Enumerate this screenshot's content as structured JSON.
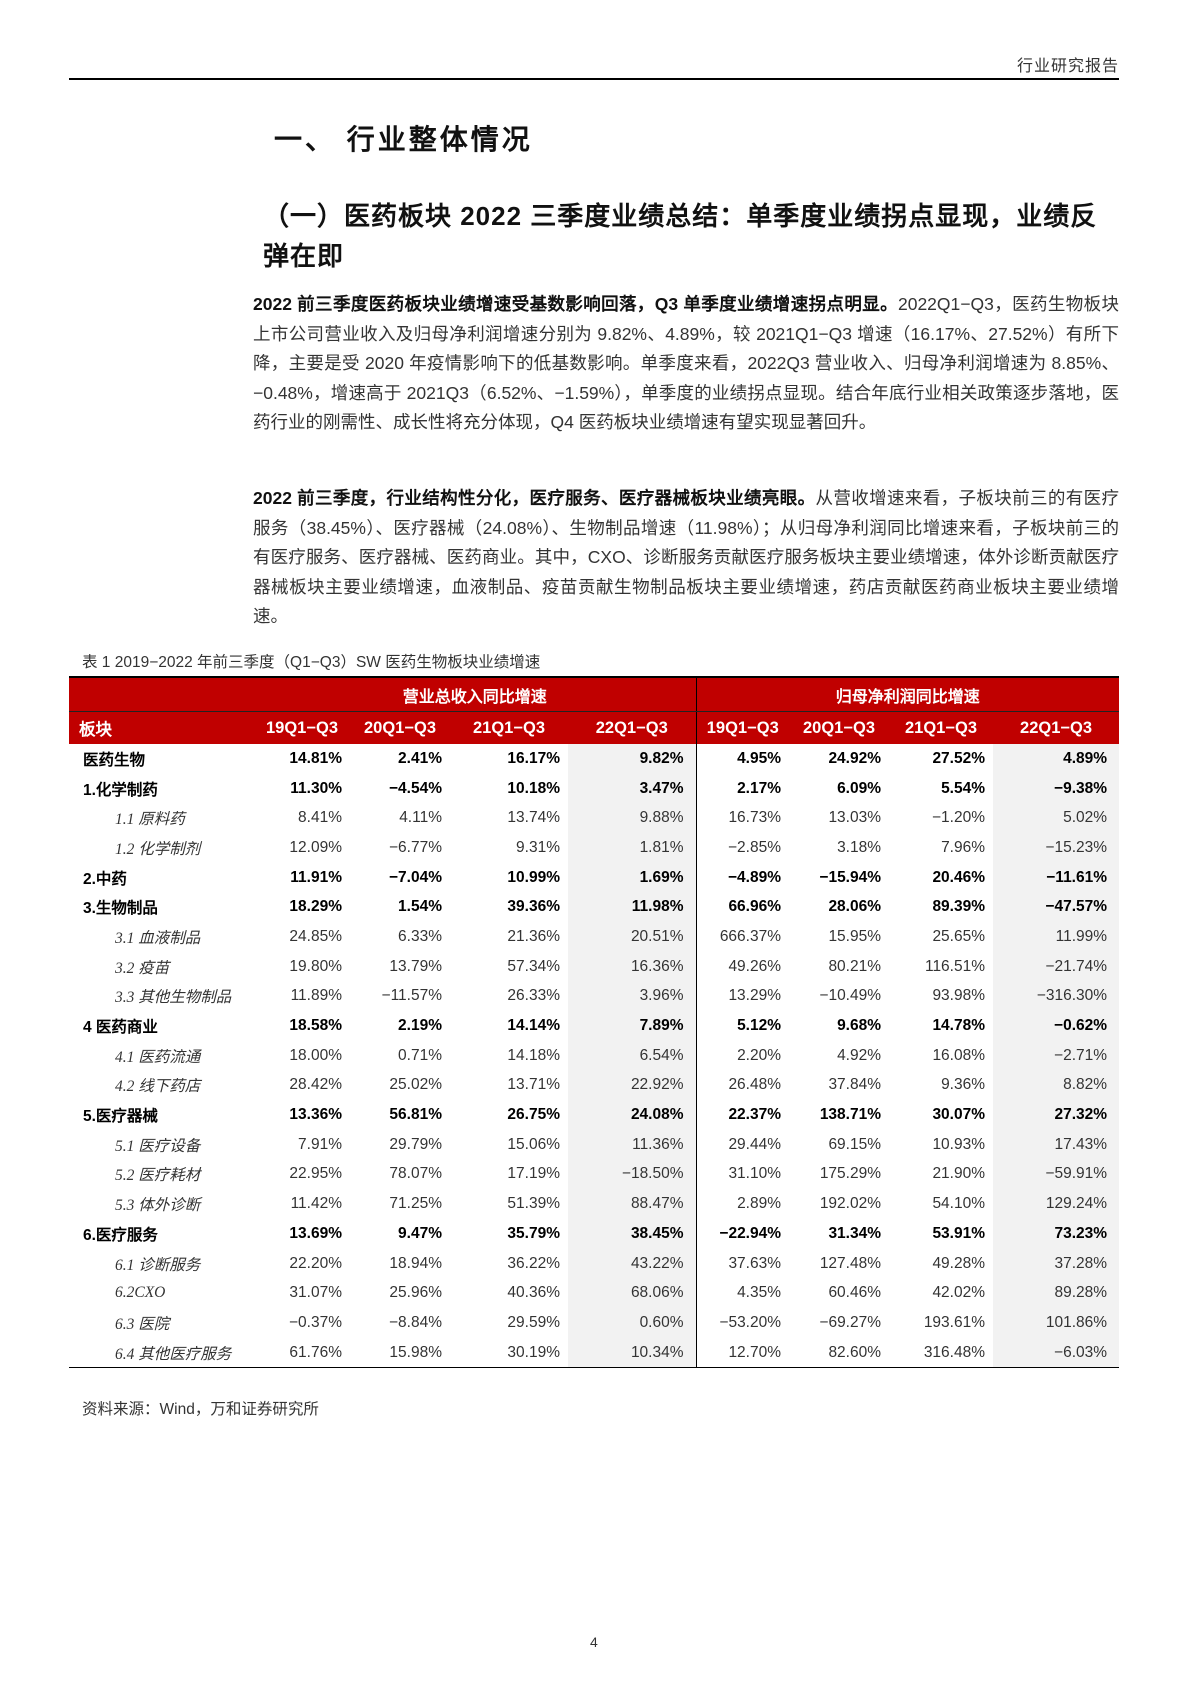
{
  "header": {
    "report_type": "行业研究报告"
  },
  "section": {
    "title": "一、 行业整体情况",
    "subtitle": "（一）医药板块 2022 三季度业绩总结：单季度业绩拐点显现，业绩反弹在即"
  },
  "paragraphs": [
    {
      "lead": "2022 前三季度医药板块业绩增速受基数影响回落，Q3 单季度业绩增速拐点明显。",
      "body": "2022Q1−Q3，医药生物板块上市公司营业收入及归母净利润增速分别为 9.82%、4.89%，较 2021Q1−Q3 增速（16.17%、27.52%）有所下降，主要是受 2020 年疫情影响下的低基数影响。单季度来看，2022Q3 营业收入、归母净利润增速为 8.85%、−0.48%，增速高于 2021Q3（6.52%、−1.59%），单季度的业绩拐点显现。结合年底行业相关政策逐步落地，医药行业的刚需性、成长性将充分体现，Q4 医药板块业绩增速有望实现显著回升。"
    },
    {
      "lead": "2022 前三季度，行业结构性分化，医疗服务、医疗器械板块业绩亮眼。",
      "body": "从营收增速来看，子板块前三的有医疗服务（38.45%）、医疗器械（24.08%）、生物制品增速（11.98%）；从归母净利润同比增速来看，子板块前三的有医疗服务、医疗器械、医药商业。其中，CXO、诊断服务贡献医疗服务板块主要业绩增速，体外诊断贡献医疗器械板块主要业绩增速，血液制品、疫苗贡献生物制品板块主要业绩增速，药店贡献医药商业板块主要业绩增速。"
    }
  ],
  "table": {
    "caption": "表 1   2019−2022 年前三季度（Q1−Q3）SW 医药生物板块业绩增速",
    "group_headers": [
      "营业总收入同比增速",
      "归母净利润同比增速"
    ],
    "first_col_header": "板块",
    "columns": [
      "19Q1−Q3",
      "20Q1−Q3",
      "21Q1−Q3",
      "22Q1−Q3",
      "19Q1−Q3",
      "20Q1−Q3",
      "21Q1−Q3",
      "22Q1−Q3"
    ],
    "header_color": "#c00000",
    "highlight_column_color": "#f2f2f2",
    "rows": [
      {
        "label": "医药生物",
        "level": "top",
        "values": [
          "14.81%",
          "2.41%",
          "16.17%",
          "9.82%",
          "4.95%",
          "24.92%",
          "27.52%",
          "4.89%"
        ]
      },
      {
        "label": "1.化学制药",
        "level": "top",
        "values": [
          "11.30%",
          "−4.54%",
          "10.18%",
          "3.47%",
          "2.17%",
          "6.09%",
          "5.54%",
          "−9.38%"
        ]
      },
      {
        "label": "1.1 原料药",
        "level": "sub",
        "values": [
          "8.41%",
          "4.11%",
          "13.74%",
          "9.88%",
          "16.73%",
          "13.03%",
          "−1.20%",
          "5.02%"
        ]
      },
      {
        "label": "1.2 化学制剂",
        "level": "sub",
        "values": [
          "12.09%",
          "−6.77%",
          "9.31%",
          "1.81%",
          "−2.85%",
          "3.18%",
          "7.96%",
          "−15.23%"
        ]
      },
      {
        "label": "2.中药",
        "level": "top",
        "values": [
          "11.91%",
          "−7.04%",
          "10.99%",
          "1.69%",
          "−4.89%",
          "−15.94%",
          "20.46%",
          "−11.61%"
        ]
      },
      {
        "label": "3.生物制品",
        "level": "top",
        "values": [
          "18.29%",
          "1.54%",
          "39.36%",
          "11.98%",
          "66.96%",
          "28.06%",
          "89.39%",
          "−47.57%"
        ]
      },
      {
        "label": "3.1 血液制品",
        "level": "sub",
        "values": [
          "24.85%",
          "6.33%",
          "21.36%",
          "20.51%",
          "666.37%",
          "15.95%",
          "25.65%",
          "11.99%"
        ]
      },
      {
        "label": "3.2 疫苗",
        "level": "sub",
        "values": [
          "19.80%",
          "13.79%",
          "57.34%",
          "16.36%",
          "49.26%",
          "80.21%",
          "116.51%",
          "−21.74%"
        ]
      },
      {
        "label": "3.3 其他生物制品",
        "level": "sub",
        "values": [
          "11.89%",
          "−11.57%",
          "26.33%",
          "3.96%",
          "13.29%",
          "−10.49%",
          "93.98%",
          "−316.30%"
        ]
      },
      {
        "label": "4 医药商业",
        "level": "top",
        "values": [
          "18.58%",
          "2.19%",
          "14.14%",
          "7.89%",
          "5.12%",
          "9.68%",
          "14.78%",
          "−0.62%"
        ]
      },
      {
        "label": "4.1 医药流通",
        "level": "sub",
        "values": [
          "18.00%",
          "0.71%",
          "14.18%",
          "6.54%",
          "2.20%",
          "4.92%",
          "16.08%",
          "−2.71%"
        ]
      },
      {
        "label": "4.2 线下药店",
        "level": "sub",
        "values": [
          "28.42%",
          "25.02%",
          "13.71%",
          "22.92%",
          "26.48%",
          "37.84%",
          "9.36%",
          "8.82%"
        ]
      },
      {
        "label": "5.医疗器械",
        "level": "top",
        "values": [
          "13.36%",
          "56.81%",
          "26.75%",
          "24.08%",
          "22.37%",
          "138.71%",
          "30.07%",
          "27.32%"
        ]
      },
      {
        "label": "5.1 医疗设备",
        "level": "sub",
        "values": [
          "7.91%",
          "29.79%",
          "15.06%",
          "11.36%",
          "29.44%",
          "69.15%",
          "10.93%",
          "17.43%"
        ]
      },
      {
        "label": "5.2 医疗耗材",
        "level": "sub",
        "values": [
          "22.95%",
          "78.07%",
          "17.19%",
          "−18.50%",
          "31.10%",
          "175.29%",
          "21.90%",
          "−59.91%"
        ]
      },
      {
        "label": "5.3 体外诊断",
        "level": "sub",
        "values": [
          "11.42%",
          "71.25%",
          "51.39%",
          "88.47%",
          "2.89%",
          "192.02%",
          "54.10%",
          "129.24%"
        ]
      },
      {
        "label": "6.医疗服务",
        "level": "top",
        "values": [
          "13.69%",
          "9.47%",
          "35.79%",
          "38.45%",
          "−22.94%",
          "31.34%",
          "53.91%",
          "73.23%"
        ]
      },
      {
        "label": "6.1 诊断服务",
        "level": "sub",
        "values": [
          "22.20%",
          "18.94%",
          "36.22%",
          "43.22%",
          "37.63%",
          "127.48%",
          "49.28%",
          "37.28%"
        ]
      },
      {
        "label": "6.2CXO",
        "level": "sub",
        "values": [
          "31.07%",
          "25.96%",
          "40.36%",
          "68.06%",
          "4.35%",
          "60.46%",
          "42.02%",
          "89.28%"
        ]
      },
      {
        "label": "6.3 医院",
        "level": "sub",
        "values": [
          "−0.37%",
          "−8.84%",
          "29.59%",
          "0.60%",
          "−53.20%",
          "−69.27%",
          "193.61%",
          "101.86%"
        ]
      },
      {
        "label": "6.4 其他医疗服务",
        "level": "sub",
        "values": [
          "61.76%",
          "15.98%",
          "30.19%",
          "10.34%",
          "12.70%",
          "82.60%",
          "316.48%",
          "−6.03%"
        ]
      }
    ],
    "source": "资料来源：Wind，万和证券研究所"
  },
  "footer": {
    "page_number": "4"
  }
}
